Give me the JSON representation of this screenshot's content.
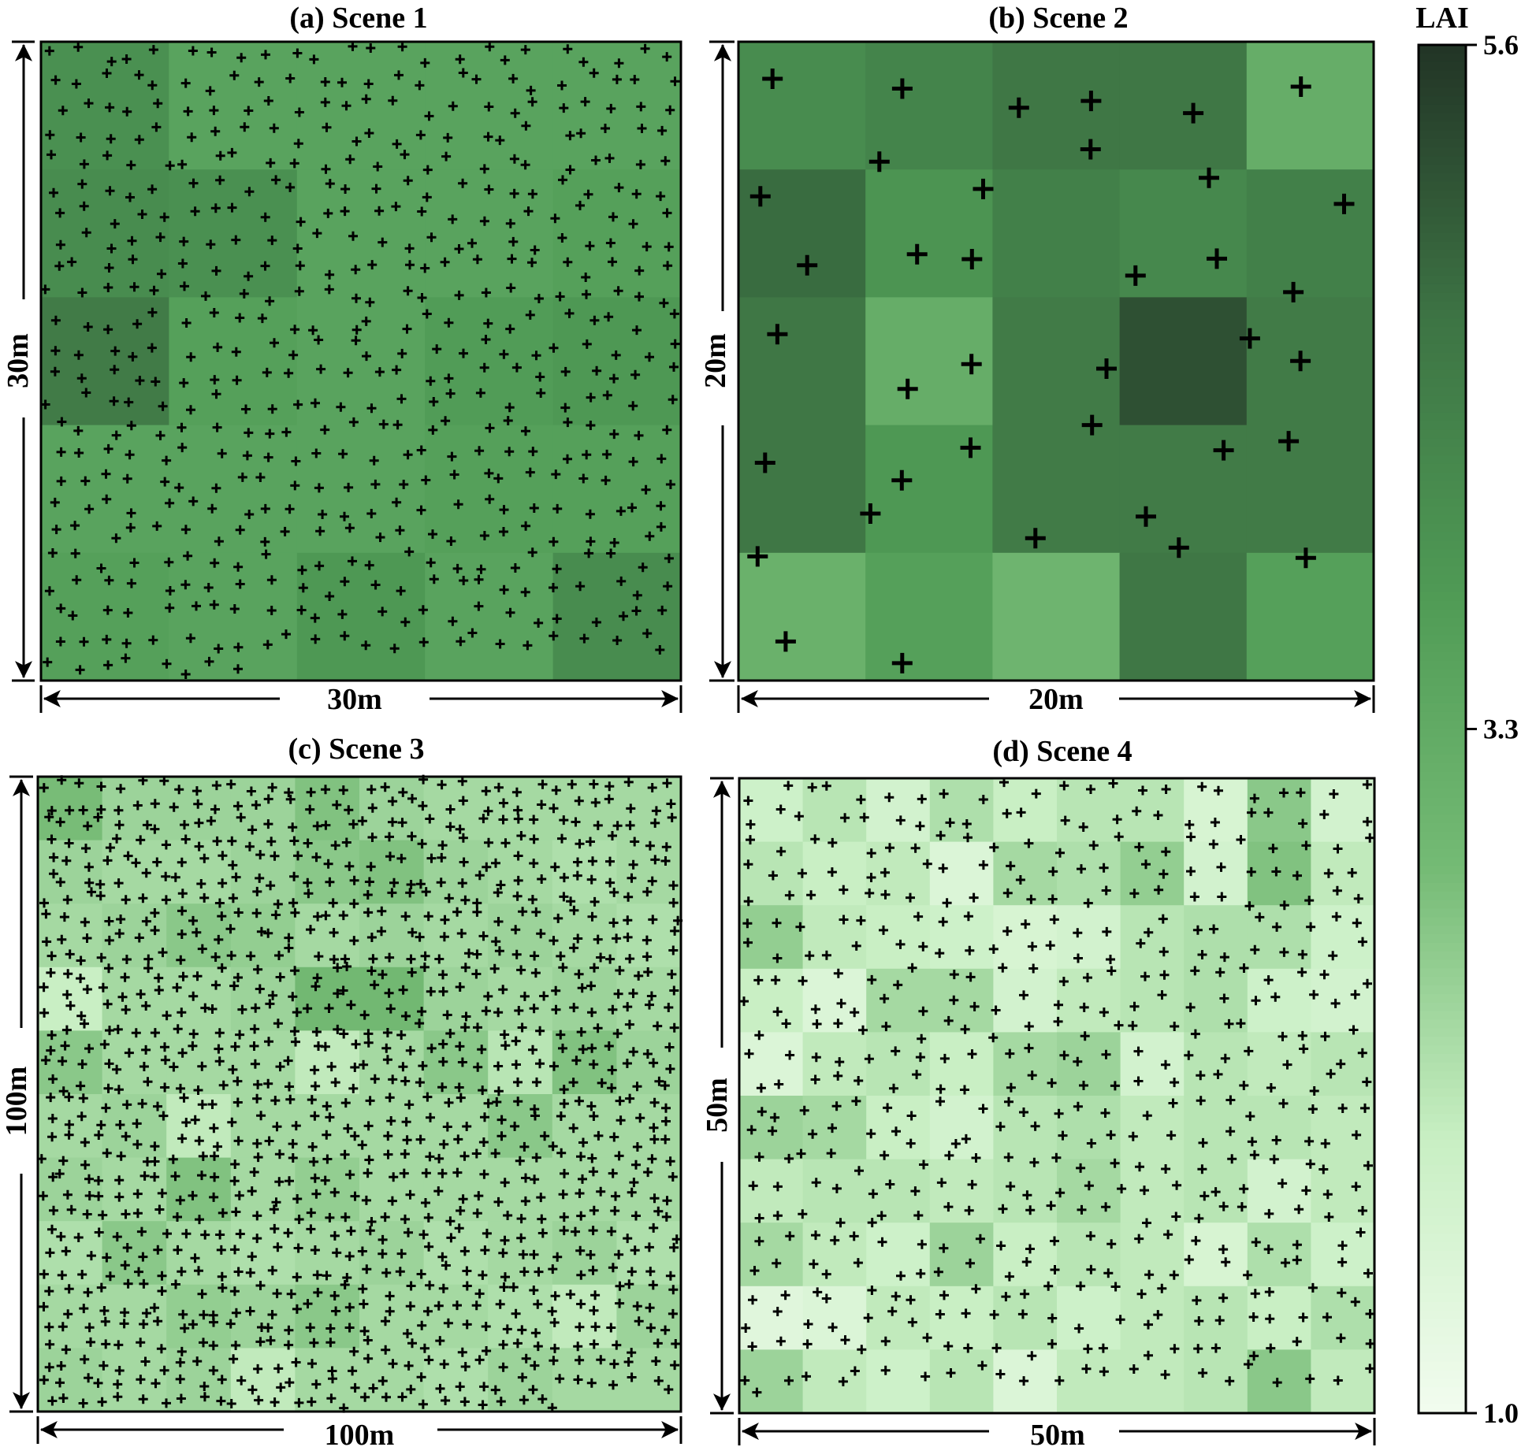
{
  "chart_data": {
    "type": "heatmap",
    "colorbar": {
      "label": "LAI",
      "min": 1.0,
      "max": 5.6,
      "ticks": [
        {
          "value": 5.6,
          "label": "5.6"
        },
        {
          "value": 3.3,
          "label": "3.3"
        },
        {
          "value": 1.0,
          "label": "1.0"
        }
      ],
      "colormap": [
        "#f2fcef",
        "#c8efc3",
        "#74ba74",
        "#4f9a55",
        "#3d7444",
        "#223426"
      ]
    },
    "panels": [
      {
        "id": "scene1",
        "title": "(a) Scene 1",
        "width_label": "30m",
        "height_label": "30m",
        "extent": 30,
        "grid": 5,
        "marker_count": 560,
        "lai": [
          [
            4.0,
            3.5,
            3.5,
            3.5,
            3.5
          ],
          [
            4.1,
            4.0,
            3.5,
            3.5,
            3.6
          ],
          [
            4.5,
            3.6,
            3.5,
            3.7,
            3.8
          ],
          [
            3.5,
            3.5,
            3.5,
            3.6,
            3.6
          ],
          [
            3.6,
            3.5,
            3.8,
            3.5,
            4.1
          ]
        ]
      },
      {
        "id": "scene2",
        "title": "(b) Scene 2",
        "width_label": "20m",
        "height_label": "20m",
        "extent": 20,
        "grid": 5,
        "marker_count": 38,
        "lai": [
          [
            4.1,
            4.3,
            4.6,
            4.6,
            3.2
          ],
          [
            4.8,
            3.9,
            4.4,
            4.2,
            4.4
          ],
          [
            4.6,
            3.2,
            4.5,
            5.2,
            4.5
          ],
          [
            4.6,
            3.8,
            4.5,
            4.5,
            4.5
          ],
          [
            3.1,
            3.6,
            3.0,
            4.6,
            3.6
          ]
        ]
      },
      {
        "id": "scene3",
        "title": "(c) Scene 3",
        "width_label": "100m",
        "height_label": "100m",
        "extent": 100,
        "grid": 10,
        "marker_count": 1150,
        "lai": [
          [
            2.8,
            2.4,
            2.4,
            2.4,
            2.7,
            2.4,
            2.3,
            2.3,
            2.3,
            2.3
          ],
          [
            2.4,
            2.3,
            2.3,
            2.4,
            2.6,
            2.7,
            2.4,
            2.3,
            2.2,
            2.3
          ],
          [
            2.3,
            2.4,
            2.6,
            2.5,
            2.3,
            2.4,
            2.3,
            2.4,
            2.3,
            2.2
          ],
          [
            1.9,
            2.3,
            2.3,
            2.4,
            2.9,
            2.9,
            2.4,
            2.3,
            2.4,
            2.3
          ],
          [
            2.6,
            2.3,
            2.3,
            2.3,
            2.0,
            2.3,
            2.6,
            2.1,
            2.7,
            2.4
          ],
          [
            2.3,
            2.4,
            2.0,
            2.3,
            2.3,
            2.3,
            2.3,
            2.6,
            2.3,
            2.3
          ],
          [
            2.4,
            2.3,
            2.7,
            2.3,
            2.5,
            2.3,
            2.3,
            2.3,
            2.3,
            2.3
          ],
          [
            2.2,
            2.6,
            2.3,
            2.2,
            2.3,
            2.4,
            2.2,
            2.3,
            2.4,
            2.2
          ],
          [
            2.3,
            2.3,
            2.5,
            2.4,
            2.6,
            2.3,
            2.3,
            2.2,
            2.0,
            2.4
          ],
          [
            2.4,
            2.3,
            2.4,
            2.0,
            2.3,
            2.3,
            2.2,
            2.4,
            2.3,
            2.3
          ]
        ]
      },
      {
        "id": "scene4",
        "title": "(d) Scene 4",
        "width_label": "50m",
        "height_label": "50m",
        "extent": 50,
        "grid": 10,
        "marker_count": 530,
        "lai": [
          [
            1.8,
            2.1,
            1.7,
            2.2,
            1.9,
            2.1,
            2.1,
            1.6,
            2.6,
            1.7
          ],
          [
            2.1,
            1.9,
            2.0,
            1.5,
            2.3,
            2.2,
            2.5,
            1.7,
            2.7,
            2.0
          ],
          [
            2.5,
            2.0,
            1.9,
            1.8,
            1.6,
            1.7,
            2.1,
            2.2,
            2.2,
            1.8
          ],
          [
            1.9,
            1.5,
            2.3,
            2.3,
            1.7,
            2.0,
            2.1,
            2.2,
            1.8,
            1.7
          ],
          [
            1.5,
            2.0,
            2.1,
            1.9,
            2.3,
            2.4,
            1.7,
            2.1,
            2.0,
            2.1
          ],
          [
            2.4,
            2.3,
            1.9,
            1.7,
            2.1,
            2.2,
            2.0,
            2.1,
            2.1,
            2.0
          ],
          [
            2.0,
            2.1,
            2.1,
            2.0,
            2.1,
            2.3,
            2.0,
            2.1,
            1.7,
            2.0
          ],
          [
            2.3,
            2.0,
            1.8,
            2.4,
            1.9,
            2.1,
            2.0,
            1.6,
            2.2,
            1.8
          ],
          [
            1.4,
            1.5,
            2.0,
            1.9,
            2.1,
            1.8,
            2.0,
            2.1,
            1.9,
            2.2
          ],
          [
            2.4,
            2.0,
            1.8,
            2.1,
            1.5,
            2.0,
            2.0,
            2.1,
            2.6,
            2.0
          ]
        ]
      }
    ]
  }
}
